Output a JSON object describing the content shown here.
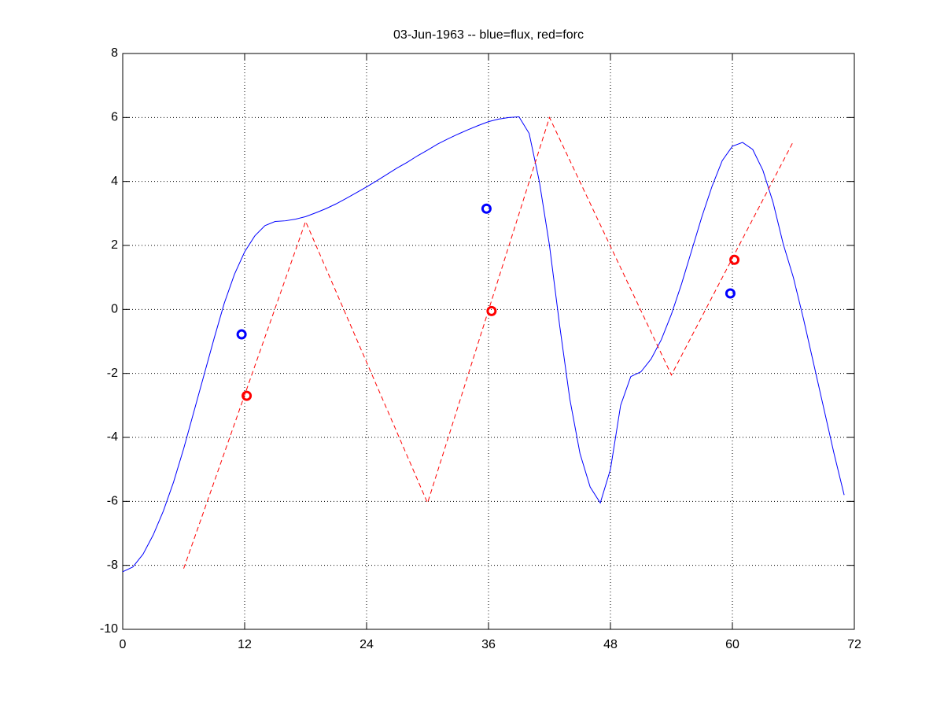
{
  "chart_data": {
    "type": "line",
    "title": "03-Jun-1963 -- blue=flux, red=forc",
    "xlim": [
      0,
      72
    ],
    "xticks": [
      0,
      12,
      24,
      36,
      48,
      60,
      72
    ],
    "ylim": [
      -10,
      8
    ],
    "yticks": [
      -10,
      -8,
      -6,
      -4,
      -2,
      0,
      2,
      4,
      6,
      8
    ],
    "grid": true,
    "series": [
      {
        "color": "#0000ff",
        "style": "solid",
        "x": [
          0,
          1,
          2,
          3,
          4,
          5,
          6,
          7,
          8,
          9,
          10,
          11,
          12,
          13,
          14,
          15,
          16,
          17,
          18,
          19,
          20,
          21,
          22,
          23,
          24,
          25,
          26,
          27,
          28,
          29,
          30,
          31,
          32,
          33,
          34,
          35,
          36,
          37,
          38,
          39,
          40,
          41,
          42,
          43,
          44,
          45,
          46,
          47,
          48,
          49,
          50,
          51,
          52,
          53,
          54,
          55,
          56,
          57,
          58,
          59,
          60,
          61,
          62,
          63,
          64,
          65,
          66,
          67,
          68,
          69,
          70,
          71
        ],
        "values": [
          -8.2,
          -8.05,
          -7.65,
          -7.05,
          -6.3,
          -5.4,
          -4.35,
          -3.2,
          -2.05,
          -0.9,
          0.2,
          1.1,
          1.8,
          2.3,
          2.62,
          2.75,
          2.77,
          2.82,
          2.9,
          3.02,
          3.15,
          3.3,
          3.47,
          3.65,
          3.83,
          4.02,
          4.22,
          4.42,
          4.6,
          4.8,
          4.98,
          5.17,
          5.33,
          5.48,
          5.62,
          5.75,
          5.87,
          5.95,
          6.0,
          6.02,
          5.5,
          4.0,
          2.0,
          -0.5,
          -2.8,
          -4.5,
          -5.55,
          -6.05,
          -5.0,
          -3.0,
          -2.1,
          -1.95,
          -1.55,
          -0.95,
          -0.15,
          0.8,
          1.85,
          2.9,
          3.85,
          4.65,
          5.1,
          5.22,
          5.0,
          4.35,
          3.35,
          2.05,
          1.0,
          -0.3,
          -1.7,
          -3.1,
          -4.5,
          -5.8
        ]
      },
      {
        "color": "#ff0000",
        "style": "dashed",
        "x": [
          6,
          18,
          30,
          42,
          54,
          66
        ],
        "values": [
          -8.1,
          2.75,
          -6.05,
          6.0,
          -2.05,
          5.25
        ]
      },
      {
        "color": "#0000ff",
        "style": "marker",
        "x": [
          11.7,
          35.8,
          59.8
        ],
        "values": [
          -0.78,
          3.15,
          0.5
        ]
      },
      {
        "color": "#ff0000",
        "style": "marker",
        "x": [
          12.2,
          36.3,
          60.2
        ],
        "values": [
          -2.7,
          -0.05,
          1.55
        ]
      }
    ]
  }
}
